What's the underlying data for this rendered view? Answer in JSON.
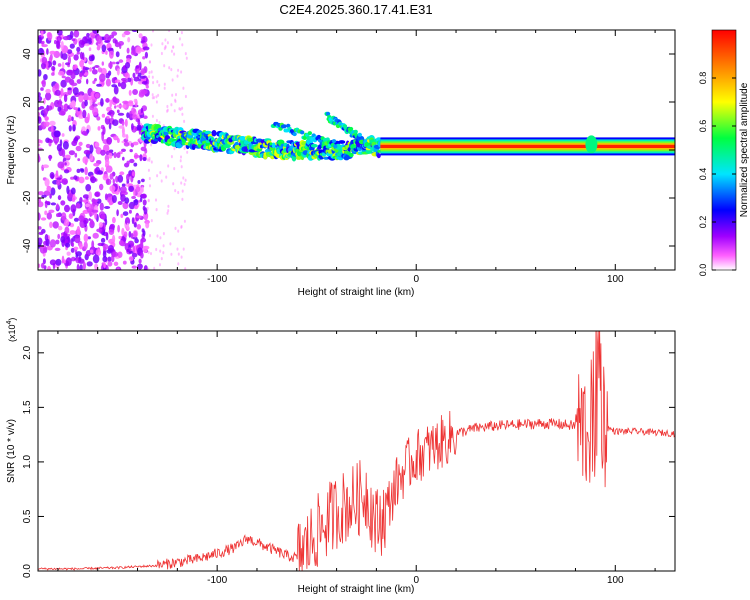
{
  "title": "C2E4.2025.360.17.41.E31",
  "chart_data": [
    {
      "type": "heatmap",
      "title": "C2E4.2025.360.17.41.E31",
      "xlabel": "Height of straight line (km)",
      "ylabel": "Frequency (Hz)",
      "xlim": [
        -190,
        130
      ],
      "ylim": [
        -50,
        50
      ],
      "xticks": [
        -100,
        0,
        100
      ],
      "xtick_labels": [
        "-100",
        "0",
        "100"
      ],
      "yticks": [
        -40,
        -20,
        0,
        20,
        40
      ],
      "ytick_labels": [
        "-40",
        "-20",
        "0",
        "20",
        "40"
      ],
      "colorbar": {
        "label": "Normalized spectral amplitude",
        "range": [
          0,
          1
        ],
        "ticks": [
          0.0,
          0.2,
          0.4,
          0.6,
          0.8
        ],
        "tick_labels": [
          "0.0",
          "0.2",
          "0.4",
          "0.6",
          "0.8"
        ],
        "colors": [
          "#ffffff",
          "#ff00ff",
          "#8000ff",
          "#0000ff",
          "#00ffff",
          "#00ff00",
          "#ffff00",
          "#ff8000",
          "#ff0000"
        ]
      },
      "features": {
        "noise_region_x": [
          -190,
          -135
        ],
        "band_center_hz": [
          {
            "x": -135,
            "y": 7
          },
          {
            "x": -115,
            "y": 5
          },
          {
            "x": -95,
            "y": 3
          },
          {
            "x": -80,
            "y": 1
          },
          {
            "x": -65,
            "y": 0
          },
          {
            "x": -50,
            "y": 0
          },
          {
            "x": -35,
            "y": 0
          },
          {
            "x": -25,
            "y": 2
          },
          {
            "x": -20,
            "y": 1
          },
          {
            "x": 0,
            "y": 1
          },
          {
            "x": 130,
            "y": 1
          }
        ],
        "secondary_branches": [
          {
            "x": [
              -72,
              -40
            ],
            "y": [
              11,
              2
            ]
          },
          {
            "x": [
              -45,
              -28
            ],
            "y": [
              14,
              5
            ]
          }
        ],
        "bright_band_x": [
          -18,
          130
        ],
        "bright_band_hz": 1.5,
        "perturbation_x": 88
      }
    },
    {
      "type": "line",
      "xlabel": "Height of straight line (km)",
      "ylabel": "SNR (10 * v/v)",
      "y_scale_label": "(x10",
      "y_scale_exponent": "4",
      "xlim": [
        -190,
        130
      ],
      "ylim": [
        0,
        2.2
      ],
      "xticks": [
        -100,
        0,
        100
      ],
      "xtick_labels": [
        "-100",
        "0",
        "100"
      ],
      "yticks": [
        0.0,
        0.5,
        1.0,
        1.5,
        2.0
      ],
      "ytick_labels": [
        "0.0",
        "0.5",
        "1.0",
        "1.5",
        "2.0"
      ],
      "color": "#ee3333",
      "series": [
        {
          "name": "SNR",
          "x": [
            -190,
            -170,
            -150,
            -130,
            -120,
            -110,
            -100,
            -90,
            -85,
            -80,
            -75,
            -70,
            -65,
            -60,
            -55,
            -50,
            -45,
            -40,
            -35,
            -30,
            -25,
            -20,
            -15,
            -10,
            -5,
            0,
            10,
            20,
            30,
            40,
            50,
            60,
            70,
            80,
            85,
            88,
            90,
            91,
            92,
            93,
            95,
            100,
            110,
            120,
            130
          ],
          "y": [
            0.02,
            0.02,
            0.03,
            0.05,
            0.08,
            0.11,
            0.16,
            0.22,
            0.3,
            0.26,
            0.22,
            0.18,
            0.14,
            0.12,
            0.22,
            0.35,
            0.45,
            0.55,
            0.6,
            0.65,
            0.72,
            0.42,
            0.55,
            0.8,
            0.95,
            1.05,
            1.15,
            1.26,
            1.31,
            1.33,
            1.34,
            1.35,
            1.35,
            1.33,
            1.31,
            1.35,
            1.6,
            1.85,
            2.05,
            1.55,
            1.32,
            1.28,
            1.28,
            1.27,
            1.26
          ]
        }
      ]
    }
  ]
}
